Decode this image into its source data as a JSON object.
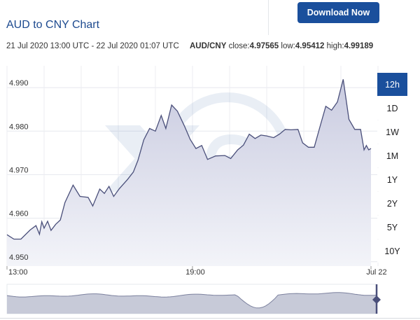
{
  "header": {
    "download_label": "Download Now",
    "title": "AUD to CNY Chart"
  },
  "meta": {
    "time_range": "21 Jul 2020 13:00 UTC - 22 Jul 2020 01:07 UTC",
    "pair": "AUD/CNY",
    "close_label": "close:",
    "close_value": "4.97565",
    "low_label": "low:",
    "low_value": "4.95412",
    "high_label": "high:",
    "high_value": "4.99189"
  },
  "range_buttons": [
    {
      "label": "12h",
      "active": true
    },
    {
      "label": "1D",
      "active": false
    },
    {
      "label": "1W",
      "active": false
    },
    {
      "label": "1M",
      "active": false
    },
    {
      "label": "1Y",
      "active": false
    },
    {
      "label": "2Y",
      "active": false
    },
    {
      "label": "5Y",
      "active": false
    },
    {
      "label": "10Y",
      "active": false
    }
  ],
  "colors": {
    "accent": "#1a4f9c",
    "line": "#4a4f7a",
    "area_top": "#c9cbe0",
    "area_bottom": "#f3f4f9"
  },
  "watermark_icon": "xe-logo-watermark",
  "chart_data": {
    "type": "area",
    "series": [
      {
        "values": [
          [
            0.0,
            4.9562
          ],
          [
            1.2,
            4.9552
          ],
          [
            2.4,
            4.9552
          ],
          [
            4.0,
            4.9573
          ],
          [
            5.0,
            4.9583
          ],
          [
            5.6,
            4.9563
          ],
          [
            6.0,
            4.9592
          ],
          [
            6.4,
            4.9577
          ],
          [
            7.0,
            4.9593
          ],
          [
            7.6,
            4.9572
          ],
          [
            8.4,
            4.9586
          ],
          [
            9.2,
            4.9596
          ],
          [
            10.0,
            4.9636
          ],
          [
            11.4,
            4.9676
          ],
          [
            12.6,
            4.965
          ],
          [
            14.0,
            4.9648
          ],
          [
            14.8,
            4.9628
          ],
          [
            16.0,
            4.9667
          ],
          [
            16.8,
            4.9657
          ],
          [
            17.6,
            4.9673
          ],
          [
            18.4,
            4.965
          ],
          [
            19.4,
            4.9668
          ],
          [
            20.8,
            4.9689
          ],
          [
            21.8,
            4.9706
          ],
          [
            22.6,
            4.9733
          ],
          [
            23.6,
            4.978
          ],
          [
            24.6,
            4.9806
          ],
          [
            25.6,
            4.98
          ],
          [
            26.6,
            4.9836
          ],
          [
            27.4,
            4.9806
          ],
          [
            28.4,
            4.986
          ],
          [
            29.4,
            4.9846
          ],
          [
            30.6,
            4.9812
          ],
          [
            31.6,
            4.9781
          ],
          [
            32.6,
            4.976
          ],
          [
            33.6,
            4.9767
          ],
          [
            34.6,
            4.9735
          ],
          [
            36.0,
            4.9743
          ],
          [
            37.6,
            4.9744
          ],
          [
            38.6,
            4.9737
          ],
          [
            39.8,
            4.9757
          ],
          [
            40.8,
            4.9768
          ],
          [
            41.8,
            4.9793
          ],
          [
            42.8,
            4.9783
          ],
          [
            43.8,
            4.9791
          ],
          [
            44.8,
            4.9789
          ],
          [
            46.0,
            4.9785
          ],
          [
            47.0,
            4.9793
          ],
          [
            48.0,
            4.9804
          ],
          [
            49.0,
            4.9803
          ],
          [
            50.2,
            4.9804
          ],
          [
            51.0,
            4.9773
          ],
          [
            52.0,
            4.9763
          ],
          [
            53.0,
            4.9763
          ],
          [
            54.0,
            4.981
          ],
          [
            55.0,
            4.9857
          ],
          [
            56.0,
            4.9848
          ],
          [
            57.0,
            4.9867
          ],
          [
            58.0,
            4.9919
          ],
          [
            59.0,
            4.9827
          ],
          [
            60.0,
            4.9804
          ],
          [
            61.0,
            4.9804
          ],
          [
            61.6,
            4.9757
          ],
          [
            62.0,
            4.9767
          ],
          [
            62.4,
            4.9757
          ],
          [
            62.8,
            4.976
          ]
        ]
      }
    ],
    "x_unit": "minutes_from_13_00_x10",
    "x_range": [
      0,
      62.8
    ],
    "y_range": [
      4.949,
      4.995
    ],
    "y_ticks": [
      "4.950",
      "4.960",
      "4.970",
      "4.980",
      "4.990"
    ],
    "y_tick_values": [
      4.95,
      4.96,
      4.97,
      4.98,
      4.99
    ],
    "x_ticks": [
      "13:00",
      "19:00",
      "Jul 22"
    ],
    "x_tick_values": [
      0,
      32.0,
      62.8
    ],
    "grid": true,
    "legend": "none"
  }
}
